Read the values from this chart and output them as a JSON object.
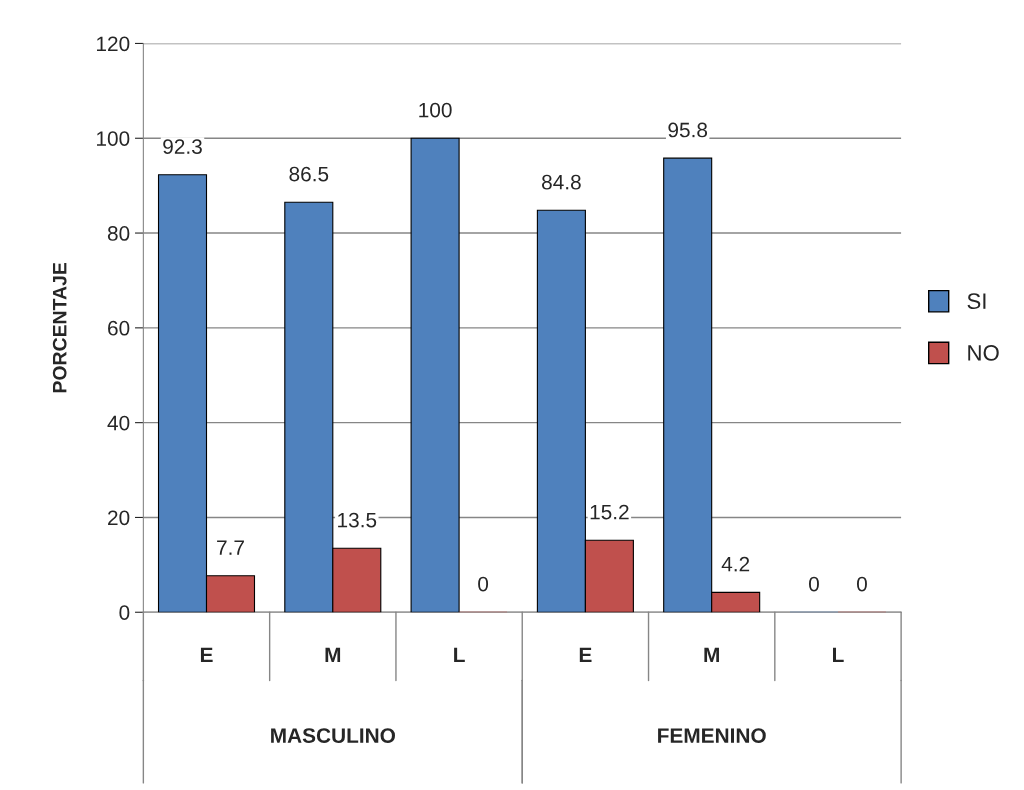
{
  "chart_data": {
    "type": "bar",
    "ylabel": "PORCENTAJE",
    "categories": [
      "E",
      "M",
      "L",
      "E",
      "M",
      "L"
    ],
    "series": [
      {
        "name": "SI",
        "color": "#4f81bd",
        "values": [
          92.3,
          86.5,
          100,
          84.8,
          95.8,
          0
        ]
      },
      {
        "name": "NO",
        "color": "#c0504d",
        "values": [
          7.7,
          13.5,
          0,
          15.2,
          4.2,
          0
        ]
      }
    ],
    "annotations": [
      "MASCULINO",
      "FEMENINO"
    ],
    "ylim": [
      0,
      120
    ],
    "yticks": [
      0,
      20,
      40,
      60,
      80,
      100,
      120
    ],
    "grid": "y",
    "legend": "right",
    "data_labels": true
  }
}
